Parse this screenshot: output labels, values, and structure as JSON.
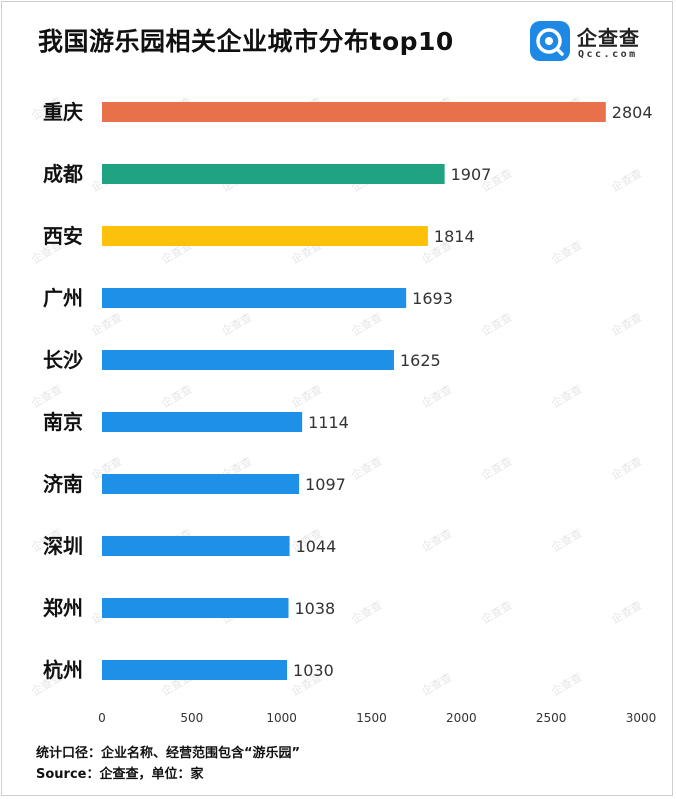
{
  "title": "我国游乐园相关企业城市分布top10",
  "logo": {
    "icon": "qcc-logo-icon",
    "name": "企查查",
    "domain": "Qcc.com"
  },
  "watermark": "企查查",
  "colors": {
    "first": "#E8704A",
    "second": "#1FA383",
    "third": "#FDC10C",
    "default": "#1E90E8",
    "logo_blue": "#1E88E5"
  },
  "chart_data": {
    "type": "bar",
    "orientation": "horizontal",
    "categories": [
      "重庆",
      "成都",
      "西安",
      "广州",
      "长沙",
      "南京",
      "济南",
      "深圳",
      "郑州",
      "杭州"
    ],
    "values": [
      2804,
      1907,
      1814,
      1693,
      1625,
      1114,
      1097,
      1044,
      1038,
      1030
    ],
    "xlim": [
      0,
      3000
    ],
    "xticks": [
      0,
      500,
      1000,
      1500,
      2000,
      2500,
      3000
    ],
    "xlabel": "",
    "ylabel": "",
    "grid": false,
    "legend": "none"
  },
  "footnotes": {
    "scope": "统计口径：企业名称、经营范围包含“游乐园”",
    "source": "Source：企查查，单位：家"
  }
}
